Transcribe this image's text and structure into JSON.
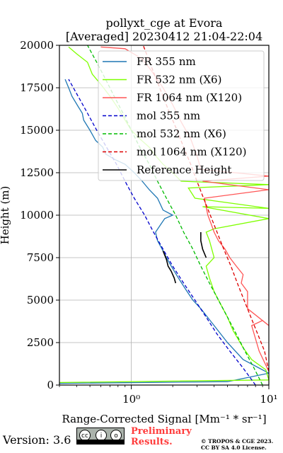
{
  "chart_data": {
    "type": "line",
    "title": "pollyxt_cge at Evora",
    "subtitle": "[Averaged] 20230412 21:04-22:04",
    "xlabel": "Range-Corrected Signal [Mm⁻¹ * sr⁻¹]",
    "ylabel": "Height (m)",
    "xscale": "log",
    "xlim": [
      0.3,
      10
    ],
    "ylim": [
      0,
      20000
    ],
    "x_ticks": [
      "10⁰",
      "10¹"
    ],
    "y_ticks": [
      0,
      2500,
      5000,
      7500,
      10000,
      12500,
      15000,
      17500,
      20000
    ],
    "grid": true,
    "legend_position": "top-right",
    "series": [
      {
        "name": "FR 355 nm",
        "color": "#1f77b4",
        "style": "solid",
        "points": [
          [
            0.3,
            100
          ],
          [
            5,
            200
          ],
          [
            10,
            700
          ],
          [
            8.5,
            1000
          ],
          [
            6.5,
            1500
          ],
          [
            5,
            2500
          ],
          [
            4,
            3500
          ],
          [
            3.2,
            4500
          ],
          [
            2.8,
            5000
          ],
          [
            2.5,
            5600
          ],
          [
            2.2,
            6300
          ],
          [
            1.95,
            7000
          ],
          [
            1.8,
            7500
          ],
          [
            1.7,
            7900
          ],
          [
            1.55,
            8500
          ],
          [
            1.5,
            9000
          ],
          [
            1.65,
            9500
          ],
          [
            1.75,
            9800
          ],
          [
            2.0,
            10000
          ],
          [
            1.7,
            10300
          ],
          [
            1.55,
            11000
          ],
          [
            1.35,
            11500
          ],
          [
            1.2,
            12000
          ],
          [
            1.05,
            12500
          ],
          [
            0.9,
            13000
          ],
          [
            0.75,
            13300
          ],
          [
            0.65,
            13600
          ],
          [
            0.62,
            14000
          ],
          [
            0.55,
            14400
          ],
          [
            0.5,
            15000
          ],
          [
            0.45,
            15600
          ],
          [
            0.44,
            16000
          ],
          [
            0.41,
            16400
          ],
          [
            0.37,
            17000
          ],
          [
            0.35,
            17500
          ],
          [
            0.33,
            18000
          ]
        ]
      },
      {
        "name": "FR 532 nm (X6)",
        "color": "#7fff00",
        "style": "solid",
        "points": [
          [
            0.3,
            150
          ],
          [
            10,
            300
          ],
          [
            9.5,
            900
          ],
          [
            7.5,
            1500
          ],
          [
            6.5,
            2200
          ],
          [
            5.5,
            3200
          ],
          [
            5,
            4000
          ],
          [
            4.5,
            4700
          ],
          [
            4,
            5500
          ],
          [
            3.7,
            6300
          ],
          [
            3.5,
            7000
          ],
          [
            4,
            7500
          ],
          [
            3.7,
            8500
          ],
          [
            3.5,
            9000
          ],
          [
            4,
            9200
          ],
          [
            10,
            9800
          ],
          [
            3.3,
            10500
          ],
          [
            10,
            10400
          ],
          [
            2.9,
            11000
          ],
          [
            2.6,
            11600
          ],
          [
            10,
            11800
          ],
          [
            2.3,
            12000
          ],
          [
            2.0,
            12500
          ],
          [
            1.7,
            13000
          ],
          [
            1.5,
            13500
          ],
          [
            1.35,
            14000
          ],
          [
            1.15,
            14500
          ],
          [
            1.0,
            15000
          ],
          [
            0.9,
            15600
          ],
          [
            0.8,
            16300
          ],
          [
            0.7,
            17000
          ],
          [
            0.6,
            17700
          ],
          [
            0.52,
            18300
          ],
          [
            0.48,
            19000
          ],
          [
            0.4,
            19500
          ],
          [
            0.35,
            19900
          ]
        ]
      },
      {
        "name": "FR 1064 nm (X120)",
        "color": "#ff5555",
        "style": "solid",
        "points": [
          [
            10,
            800
          ],
          [
            8.5,
            2000
          ],
          [
            7.5,
            3500
          ],
          [
            9,
            3800
          ],
          [
            10,
            3500
          ],
          [
            7,
            4500
          ],
          [
            7,
            5500
          ],
          [
            6.3,
            6000
          ],
          [
            6.5,
            6500
          ],
          [
            5.8,
            7000
          ],
          [
            5.2,
            7500
          ],
          [
            4.8,
            8000
          ],
          [
            4.3,
            8500
          ],
          [
            4,
            9000
          ],
          [
            3.8,
            9500
          ],
          [
            3.6,
            10000
          ],
          [
            3.4,
            11000
          ],
          [
            10,
            11500
          ],
          [
            3.3,
            12000
          ],
          [
            10,
            12300
          ],
          [
            3.2,
            12700
          ],
          [
            3.0,
            13500
          ],
          [
            2.7,
            14500
          ],
          [
            2.3,
            15500
          ],
          [
            2.0,
            16500
          ],
          [
            1.7,
            17500
          ],
          [
            1.4,
            18500
          ],
          [
            1.2,
            19200
          ],
          [
            0.9,
            19800
          ],
          [
            0.6,
            19900
          ]
        ]
      },
      {
        "name": "mol 355 nm",
        "color": "#0000cc",
        "style": "dashed",
        "points": [
          [
            8,
            0
          ],
          [
            6.5,
            1000
          ],
          [
            5.2,
            2000
          ],
          [
            4.2,
            3000
          ],
          [
            3.5,
            4000
          ],
          [
            2.9,
            5000
          ],
          [
            2.4,
            6000
          ],
          [
            2.0,
            7000
          ],
          [
            1.7,
            8000
          ],
          [
            1.45,
            9000
          ],
          [
            1.25,
            10000
          ],
          [
            1.05,
            11000
          ],
          [
            0.9,
            12000
          ],
          [
            0.78,
            13000
          ],
          [
            0.66,
            14000
          ],
          [
            0.56,
            15000
          ],
          [
            0.48,
            16000
          ],
          [
            0.41,
            17000
          ],
          [
            0.35,
            18000
          ]
        ]
      },
      {
        "name": "mol 532 nm (X6)",
        "color": "#00bb00",
        "style": "dashed",
        "points": [
          [
            9,
            0
          ],
          [
            7.8,
            1000
          ],
          [
            6.7,
            2000
          ],
          [
            5.8,
            3000
          ],
          [
            5.0,
            4000
          ],
          [
            4.3,
            5000
          ],
          [
            3.7,
            6000
          ],
          [
            3.2,
            7000
          ],
          [
            2.8,
            8000
          ],
          [
            2.4,
            9000
          ],
          [
            2.1,
            10000
          ],
          [
            1.8,
            11000
          ],
          [
            1.55,
            12000
          ],
          [
            1.35,
            13000
          ],
          [
            1.15,
            14000
          ],
          [
            1.0,
            15000
          ],
          [
            0.87,
            16000
          ],
          [
            0.75,
            17000
          ],
          [
            0.65,
            18000
          ],
          [
            0.56,
            19000
          ],
          [
            0.48,
            20000
          ]
        ]
      },
      {
        "name": "mol 1064 nm (X120)",
        "color": "#dd0000",
        "style": "dashed",
        "points": [
          [
            10,
            800
          ],
          [
            9.3,
            2000
          ],
          [
            8.3,
            3000
          ],
          [
            7.4,
            4000
          ],
          [
            6.6,
            5000
          ],
          [
            5.9,
            6000
          ],
          [
            5.3,
            7000
          ],
          [
            4.7,
            8000
          ],
          [
            4.2,
            9000
          ],
          [
            3.75,
            10000
          ],
          [
            3.35,
            11000
          ],
          [
            3.0,
            12000
          ],
          [
            2.7,
            13000
          ],
          [
            2.4,
            14000
          ],
          [
            2.15,
            15000
          ],
          [
            1.9,
            16000
          ],
          [
            1.7,
            17000
          ],
          [
            1.52,
            18000
          ],
          [
            1.36,
            19000
          ],
          [
            1.22,
            20000
          ]
        ]
      },
      {
        "name": "Reference Height",
        "color": "#000000",
        "style": "solid",
        "points": [
          [
            1.7,
            7900
          ],
          [
            1.8,
            7400
          ],
          [
            1.85,
            7000
          ],
          [
            1.95,
            6700
          ],
          [
            2.05,
            6300
          ],
          [
            2.1,
            6000
          ],
          [
            3.5,
            7500
          ],
          [
            3.3,
            8000
          ],
          [
            3.2,
            8500
          ],
          [
            3.2,
            9000
          ]
        ]
      }
    ]
  },
  "footer": {
    "version_text": "Version: 3.6",
    "cc_badge_text": "BY SA",
    "preliminary_line1": "Preliminary",
    "preliminary_line2": "Results.",
    "copyright_line1": "© TROPOS & CGE 2023.",
    "copyright_line2": "CC BY SA 4.0 License."
  }
}
